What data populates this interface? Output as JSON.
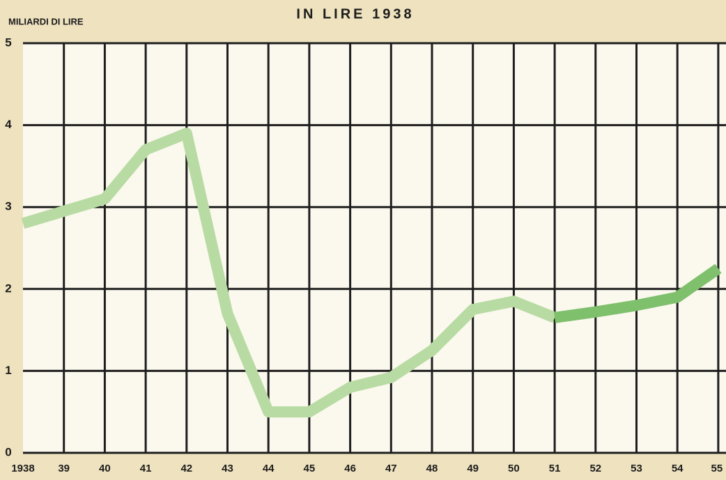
{
  "chart_data": {
    "type": "line",
    "title": "IN LIRE 1938",
    "y_label": "MILIARDI DI LIRE",
    "categories": [
      "1938",
      "39",
      "40",
      "41",
      "42",
      "43",
      "44",
      "45",
      "46",
      "47",
      "48",
      "49",
      "50",
      "51",
      "52",
      "53",
      "54",
      "55"
    ],
    "series": [
      {
        "color": "#b8dba3",
        "values": [
          2.8,
          2.95,
          3.1,
          3.7,
          3.9,
          1.7,
          0.5,
          0.5,
          0.8,
          0.92,
          1.25,
          1.75,
          1.85,
          1.65,
          null,
          null,
          null,
          null
        ]
      },
      {
        "color": "#7fc06c",
        "values": [
          null,
          null,
          null,
          null,
          null,
          null,
          null,
          null,
          null,
          null,
          null,
          null,
          null,
          1.65,
          1.72,
          1.8,
          1.9,
          2.25
        ]
      }
    ],
    "ylim": [
      0,
      5
    ],
    "yticks": [
      0,
      1,
      2,
      3,
      4,
      5
    ],
    "grid": true
  }
}
